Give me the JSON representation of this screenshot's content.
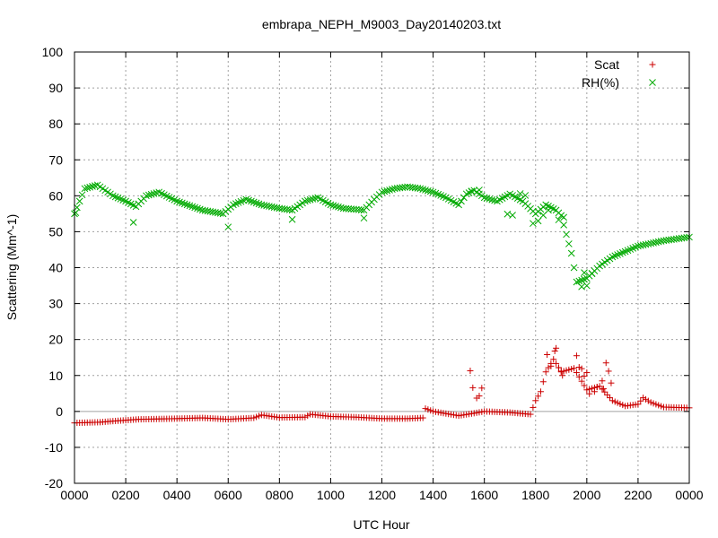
{
  "chart_data": {
    "type": "scatter",
    "title": "embrapa_NEPH_M9003_Day20140203.txt",
    "xlabel": "UTC Hour",
    "ylabel": "Scattering (Mm^-1)",
    "xlim": [
      0,
      24
    ],
    "ylim": [
      -20,
      100
    ],
    "xticks": [
      0,
      2,
      4,
      6,
      8,
      10,
      12,
      14,
      16,
      18,
      20,
      22,
      24
    ],
    "xtick_labels": [
      "0000",
      "0200",
      "0400",
      "0600",
      "0800",
      "1000",
      "1200",
      "1400",
      "1600",
      "1800",
      "2000",
      "2200",
      "0000"
    ],
    "yticks": [
      -20,
      -10,
      0,
      10,
      20,
      30,
      40,
      50,
      60,
      70,
      80,
      90,
      100
    ],
    "ytick_labels": [
      "-20",
      "-10",
      "0",
      "10",
      "20",
      "30",
      "40",
      "50",
      "60",
      "70",
      "80",
      "90",
      "100"
    ],
    "grid": true,
    "zero_line": true,
    "legend_position": "top-right",
    "series": [
      {
        "name": "Scat",
        "marker": "plus",
        "color": "#cc0000",
        "anchors": [
          [
            0.0,
            -3.2
          ],
          [
            1.0,
            -3.0
          ],
          [
            1.5,
            -2.7
          ],
          [
            2.5,
            -2.2
          ],
          [
            4.0,
            -2.0
          ],
          [
            5.0,
            -1.8
          ],
          [
            6.0,
            -2.2
          ],
          [
            7.0,
            -1.8
          ],
          [
            7.3,
            -1.0
          ],
          [
            8.0,
            -1.7
          ],
          [
            9.0,
            -1.6
          ],
          [
            9.2,
            -0.8
          ],
          [
            10.0,
            -1.4
          ],
          [
            11.0,
            -1.6
          ],
          [
            12.0,
            -2.0
          ],
          [
            13.0,
            -2.0
          ],
          [
            13.6,
            -1.8
          ],
          [
            13.7,
            0.8
          ],
          [
            14.0,
            0.0
          ],
          [
            15.0,
            -1.2
          ],
          [
            15.6,
            -0.5
          ],
          [
            16.0,
            0.0
          ],
          [
            17.0,
            -0.3
          ],
          [
            17.8,
            -0.8
          ],
          [
            18.0,
            3.0
          ],
          [
            18.2,
            5.5
          ],
          [
            18.4,
            11.0
          ],
          [
            18.7,
            14.5
          ],
          [
            19.0,
            11.0
          ],
          [
            19.5,
            12.0
          ],
          [
            20.0,
            6.0
          ],
          [
            20.5,
            7.0
          ],
          [
            21.0,
            3.0
          ],
          [
            21.5,
            1.5
          ],
          [
            22.0,
            2.0
          ],
          [
            22.2,
            3.8
          ],
          [
            22.5,
            2.5
          ],
          [
            23.0,
            1.2
          ],
          [
            24.0,
            1.0
          ]
        ],
        "extra_points": [
          [
            15.45,
            11.3
          ],
          [
            15.55,
            6.6
          ],
          [
            15.7,
            3.7
          ],
          [
            15.8,
            4.3
          ],
          [
            15.9,
            6.5
          ],
          [
            18.45,
            15.8
          ],
          [
            18.6,
            12.6
          ],
          [
            18.75,
            16.8
          ],
          [
            18.8,
            17.6
          ],
          [
            18.9,
            12.2
          ],
          [
            19.0,
            11.2
          ],
          [
            19.05,
            10.0
          ],
          [
            19.6,
            15.5
          ],
          [
            19.7,
            12.3
          ],
          [
            19.8,
            11.9
          ],
          [
            19.9,
            9.8
          ],
          [
            20.0,
            10.8
          ],
          [
            20.1,
            4.9
          ],
          [
            20.3,
            5.5
          ],
          [
            20.4,
            6.8
          ],
          [
            20.6,
            8.5
          ],
          [
            20.65,
            6.3
          ],
          [
            20.75,
            13.5
          ],
          [
            20.85,
            11.2
          ],
          [
            20.95,
            7.9
          ]
        ]
      },
      {
        "name": "RH(%)",
        "marker": "cross",
        "color": "#00aa00",
        "anchors": [
          [
            0.0,
            55.0
          ],
          [
            0.4,
            62.0
          ],
          [
            0.9,
            63.0
          ],
          [
            1.5,
            60.0
          ],
          [
            2.0,
            58.5
          ],
          [
            2.4,
            57.0
          ],
          [
            2.8,
            60.0
          ],
          [
            3.3,
            61.0
          ],
          [
            4.0,
            58.5
          ],
          [
            5.0,
            56.0
          ],
          [
            5.8,
            55.0
          ],
          [
            6.2,
            57.5
          ],
          [
            6.7,
            59.0
          ],
          [
            7.3,
            57.5
          ],
          [
            8.0,
            56.5
          ],
          [
            8.5,
            56.0
          ],
          [
            9.0,
            58.5
          ],
          [
            9.5,
            59.5
          ],
          [
            10.0,
            57.5
          ],
          [
            10.5,
            56.5
          ],
          [
            11.0,
            56.2
          ],
          [
            11.3,
            56.0
          ],
          [
            11.7,
            59.0
          ],
          [
            12.0,
            61.0
          ],
          [
            12.5,
            62.0
          ],
          [
            13.0,
            62.5
          ],
          [
            13.5,
            62.0
          ],
          [
            14.0,
            61.0
          ],
          [
            14.5,
            59.5
          ],
          [
            15.0,
            57.5
          ],
          [
            15.3,
            60.5
          ],
          [
            15.6,
            61.5
          ],
          [
            16.0,
            59.5
          ],
          [
            16.5,
            58.5
          ],
          [
            17.0,
            60.5
          ],
          [
            17.5,
            58.5
          ],
          [
            18.0,
            55.0
          ],
          [
            18.4,
            57.5
          ],
          [
            18.8,
            56.0
          ],
          [
            19.0,
            54.5
          ],
          [
            19.4,
            44.0
          ],
          [
            19.6,
            36.0
          ],
          [
            20.0,
            37.0
          ],
          [
            20.5,
            40.5
          ],
          [
            21.0,
            43.0
          ],
          [
            22.0,
            46.0
          ],
          [
            23.0,
            47.5
          ],
          [
            24.0,
            48.5
          ]
        ],
        "extra_points": [
          [
            0.05,
            55.3
          ],
          [
            2.3,
            52.6
          ],
          [
            6.0,
            51.3
          ],
          [
            8.5,
            53.4
          ],
          [
            11.3,
            53.8
          ],
          [
            15.5,
            61.3
          ],
          [
            15.8,
            61.6
          ],
          [
            16.9,
            54.9
          ],
          [
            17.1,
            54.6
          ],
          [
            17.4,
            60.6
          ],
          [
            17.6,
            60.1
          ],
          [
            17.9,
            52.3
          ],
          [
            18.1,
            53.0
          ],
          [
            18.3,
            54.6
          ],
          [
            18.5,
            56.0
          ],
          [
            18.9,
            53.3
          ],
          [
            19.1,
            54.0
          ],
          [
            19.8,
            34.7
          ],
          [
            20.0,
            35.0
          ],
          [
            19.9,
            38.6
          ],
          [
            20.2,
            38.3
          ]
        ]
      }
    ]
  }
}
